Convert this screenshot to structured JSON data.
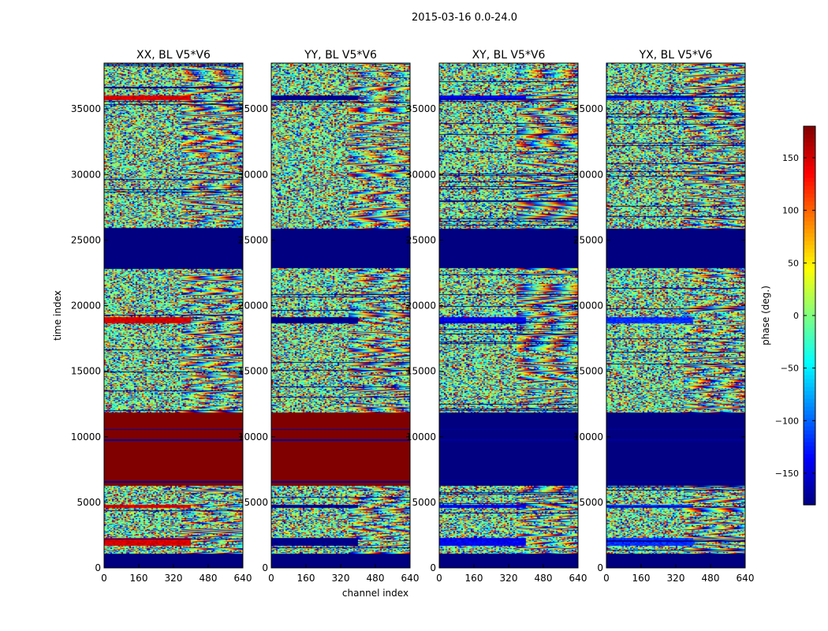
{
  "chart_data": {
    "type": "heatmap",
    "title": "2015-03-16 0.0-24.0",
    "xlabel": "channel index",
    "ylabel": "time index",
    "xlim": [
      0,
      640
    ],
    "ylim": [
      0,
      38500
    ],
    "x_ticks": [
      0,
      160,
      320,
      480,
      640
    ],
    "y_ticks": [
      0,
      5000,
      10000,
      15000,
      20000,
      25000,
      30000,
      35000
    ],
    "panels": [
      {
        "title": "XX, BL V5*V6",
        "zero_band_phase": 180,
        "stripe_phase": 150
      },
      {
        "title": "YY, BL V5*V6",
        "zero_band_phase": 180,
        "stripe_phase": -180
      },
      {
        "title": "XY, BL V5*V6",
        "zero_band_phase": -180,
        "stripe_phase": -140
      },
      {
        "title": "YX, BL V5*V6",
        "zero_band_phase": -180,
        "stripe_phase": -120
      }
    ],
    "bands": [
      {
        "t_start": 0,
        "t_end": 1100,
        "description": "no data"
      },
      {
        "t_start": 6300,
        "t_end": 11900,
        "description": "constant phase"
      },
      {
        "t_start": 22900,
        "t_end": 25900,
        "description": "no data"
      }
    ],
    "colorbar": {
      "label": "phase (deg.)",
      "vmin": -180,
      "vmax": 180,
      "ticks": [
        -150,
        -100,
        -50,
        0,
        50,
        100,
        150
      ],
      "colormap": "jet"
    }
  }
}
